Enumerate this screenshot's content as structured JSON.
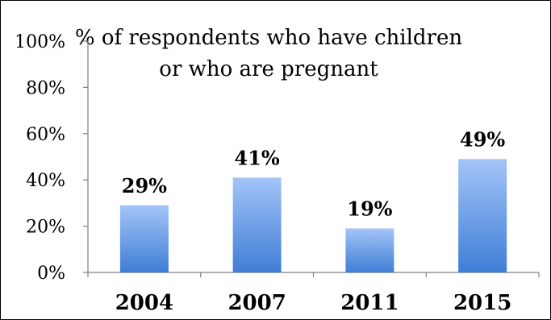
{
  "chart_data": {
    "type": "bar",
    "title_lines": [
      "% of respondents who have children",
      "or  who are pregnant"
    ],
    "categories": [
      "2004",
      "2007",
      "2011",
      "2015"
    ],
    "values": [
      29,
      41,
      19,
      49
    ],
    "data_labels": [
      "29%",
      "41%",
      "19%",
      "49%"
    ],
    "y_ticks": [
      "0%",
      "20%",
      "40%",
      "60%",
      "80%",
      "100%"
    ],
    "ylim": [
      0,
      100
    ],
    "grid": false,
    "legend": "none",
    "colors": {
      "bar_top": "#A3C4F8",
      "bar_bottom": "#3F7ED6",
      "axis": "#808080"
    }
  }
}
